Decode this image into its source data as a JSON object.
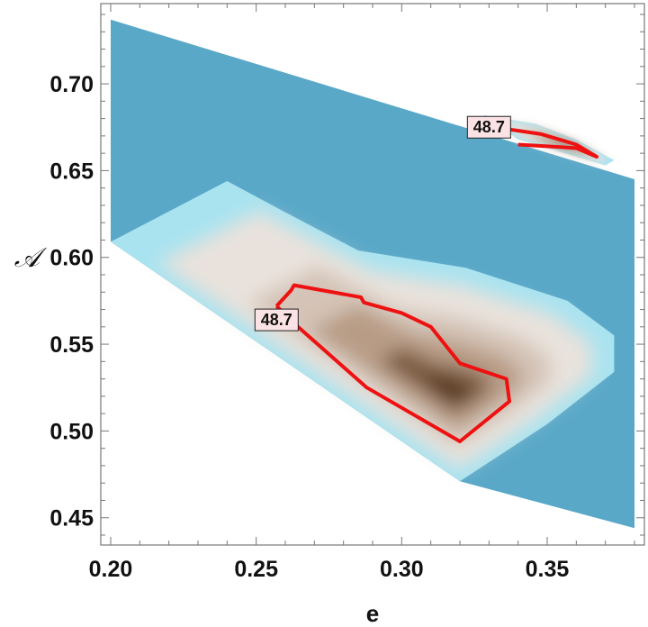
{
  "chart_data": {
    "type": "contour",
    "title": "",
    "xlabel": "e",
    "ylabel": "𝒜",
    "xlim": [
      0.2,
      0.38
    ],
    "ylim": [
      0.44,
      0.74
    ],
    "x_ticks": [
      "0.20",
      "0.25",
      "0.30",
      "0.35"
    ],
    "y_ticks": [
      "0.45",
      "0.50",
      "0.55",
      "0.60",
      "0.65",
      "0.70"
    ],
    "grid": false,
    "colors": {
      "background": "#5aa8c8",
      "edge": "#a9e3f0",
      "light": "#e9e2dc",
      "mid": "#b89c86",
      "dark": "#4c2e16",
      "contour_line": "#ee1111",
      "label_bg": "#fbe2e4"
    },
    "domain": {
      "polygon": [
        [
          0.2,
          0.737
        ],
        [
          0.38,
          0.645
        ],
        [
          0.38,
          0.444
        ],
        [
          0.32,
          0.471
        ],
        [
          0.2,
          0.609
        ]
      ]
    },
    "regions": [
      {
        "name": "lower-maximum",
        "outer": [
          [
            0.2,
            0.609
          ],
          [
            0.24,
            0.644
          ],
          [
            0.26,
            0.626
          ],
          [
            0.285,
            0.604
          ],
          [
            0.322,
            0.594
          ],
          [
            0.357,
            0.575
          ],
          [
            0.373,
            0.555
          ],
          [
            0.373,
            0.534
          ],
          [
            0.35,
            0.504
          ],
          [
            0.32,
            0.471
          ]
        ],
        "peak": [
          0.318,
          0.521
        ]
      },
      {
        "name": "upper-maximum",
        "outer": [
          [
            0.328,
            0.682
          ],
          [
            0.346,
            0.677
          ],
          [
            0.36,
            0.668
          ],
          [
            0.373,
            0.656
          ],
          [
            0.37,
            0.653
          ],
          [
            0.34,
            0.668
          ]
        ],
        "peak": [
          0.358,
          0.664
        ]
      }
    ],
    "contours": [
      {
        "level": 48.7,
        "label": "48.7",
        "label_at": [
          0.257,
          0.564
        ],
        "points": [
          [
            0.257,
            0.572
          ],
          [
            0.262,
            0.581
          ],
          [
            0.263,
            0.584
          ],
          [
            0.286,
            0.577
          ],
          [
            0.287,
            0.574
          ],
          [
            0.3,
            0.568
          ],
          [
            0.31,
            0.56
          ],
          [
            0.32,
            0.539
          ],
          [
            0.336,
            0.53
          ],
          [
            0.337,
            0.517
          ],
          [
            0.32,
            0.494
          ],
          [
            0.288,
            0.525
          ],
          [
            0.263,
            0.562
          ],
          [
            0.257,
            0.572
          ]
        ]
      },
      {
        "level": 48.7,
        "label": "48.7",
        "label_at": [
          0.33,
          0.675
        ],
        "points": [
          [
            0.336,
            0.674
          ],
          [
            0.348,
            0.671
          ],
          [
            0.36,
            0.665
          ],
          [
            0.367,
            0.658
          ],
          [
            0.36,
            0.663
          ],
          [
            0.35,
            0.664
          ],
          [
            0.34,
            0.665
          ]
        ]
      }
    ]
  }
}
